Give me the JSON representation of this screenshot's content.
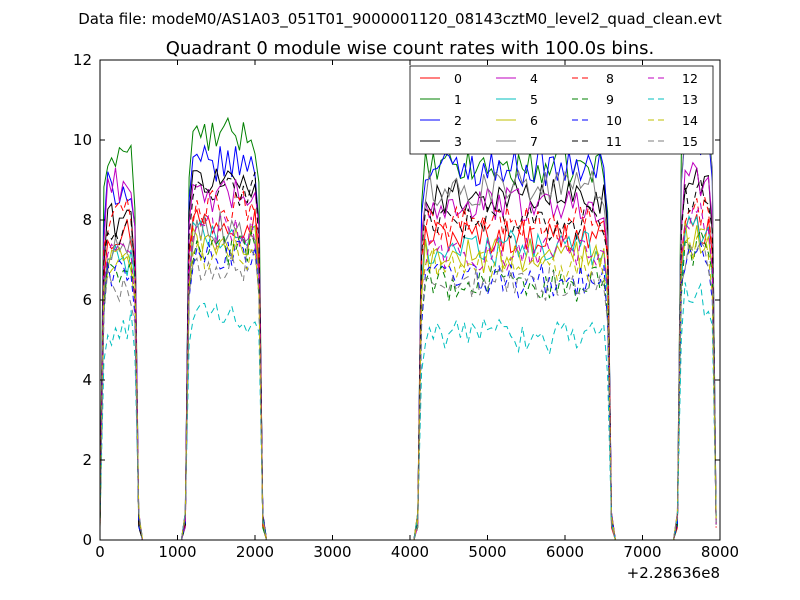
{
  "figure": {
    "suptitle": "Data file: modeM0/AS1A03_051T01_9000001120_08143cztM0_level2_quad_clean.evt"
  },
  "chart_data": {
    "type": "line",
    "title": "Quadrant 0 module wise count rates with 100.0s bins.",
    "xlabel": "",
    "ylabel": "",
    "x_offset_label": "+2.28636e8",
    "xlim": [
      0,
      8000
    ],
    "ylim": [
      0,
      12
    ],
    "x_ticks": [
      0,
      1000,
      2000,
      3000,
      4000,
      5000,
      6000,
      7000,
      8000
    ],
    "y_ticks": [
      0,
      2,
      4,
      6,
      8,
      10,
      12
    ],
    "grid": false,
    "legend_placement": "top-right",
    "legend_columns": 4,
    "segments": [
      [
        0,
        500
      ],
      [
        1100,
        2100
      ],
      [
        4100,
        6600
      ],
      [
        7450,
        7950
      ]
    ],
    "series": [
      {
        "name": "0",
        "color": "#ff0000",
        "style": "solid",
        "levels": [
          7.7,
          8.0,
          7.6,
          7.8
        ]
      },
      {
        "name": "1",
        "color": "#008000",
        "style": "solid",
        "levels": [
          9.7,
          10.1,
          9.3,
          10.6
        ]
      },
      {
        "name": "2",
        "color": "#0000ff",
        "style": "solid",
        "levels": [
          8.8,
          9.4,
          9.3,
          10.0
        ]
      },
      {
        "name": "3",
        "color": "#000000",
        "style": "solid",
        "levels": [
          8.0,
          9.0,
          8.6,
          9.0
        ]
      },
      {
        "name": "4",
        "color": "#bf00bf",
        "style": "solid",
        "levels": [
          8.9,
          8.6,
          8.4,
          9.0
        ]
      },
      {
        "name": "5",
        "color": "#00bfbf",
        "style": "solid",
        "levels": [
          7.0,
          7.6,
          7.3,
          7.8
        ]
      },
      {
        "name": "6",
        "color": "#bfbf00",
        "style": "solid",
        "levels": [
          6.9,
          7.4,
          7.1,
          7.6
        ]
      },
      {
        "name": "7",
        "color": "#7f7f7f",
        "style": "solid",
        "levels": [
          7.3,
          7.8,
          8.8,
          10.2
        ]
      },
      {
        "name": "8",
        "color": "#ff0000",
        "style": "dashed",
        "levels": [
          8.1,
          8.3,
          7.9,
          8.3
        ]
      },
      {
        "name": "9",
        "color": "#008000",
        "style": "dashed",
        "levels": [
          6.6,
          7.3,
          6.4,
          7.3
        ]
      },
      {
        "name": "10",
        "color": "#0000ff",
        "style": "dashed",
        "levels": [
          6.7,
          7.1,
          6.5,
          7.0
        ]
      },
      {
        "name": "11",
        "color": "#000000",
        "style": "dashed",
        "levels": [
          7.6,
          8.8,
          7.9,
          8.6
        ]
      },
      {
        "name": "12",
        "color": "#bf00bf",
        "style": "dashed",
        "levels": [
          7.2,
          7.7,
          7.2,
          8.0
        ]
      },
      {
        "name": "13",
        "color": "#00bfbf",
        "style": "dashed",
        "levels": [
          5.3,
          5.6,
          5.1,
          6.0
        ]
      },
      {
        "name": "14",
        "color": "#bfbf00",
        "style": "dashed",
        "levels": [
          6.9,
          7.2,
          6.9,
          7.4
        ]
      },
      {
        "name": "15",
        "color": "#7f7f7f",
        "style": "dashed",
        "levels": [
          6.3,
          6.9,
          6.4,
          7.1
        ]
      }
    ]
  }
}
